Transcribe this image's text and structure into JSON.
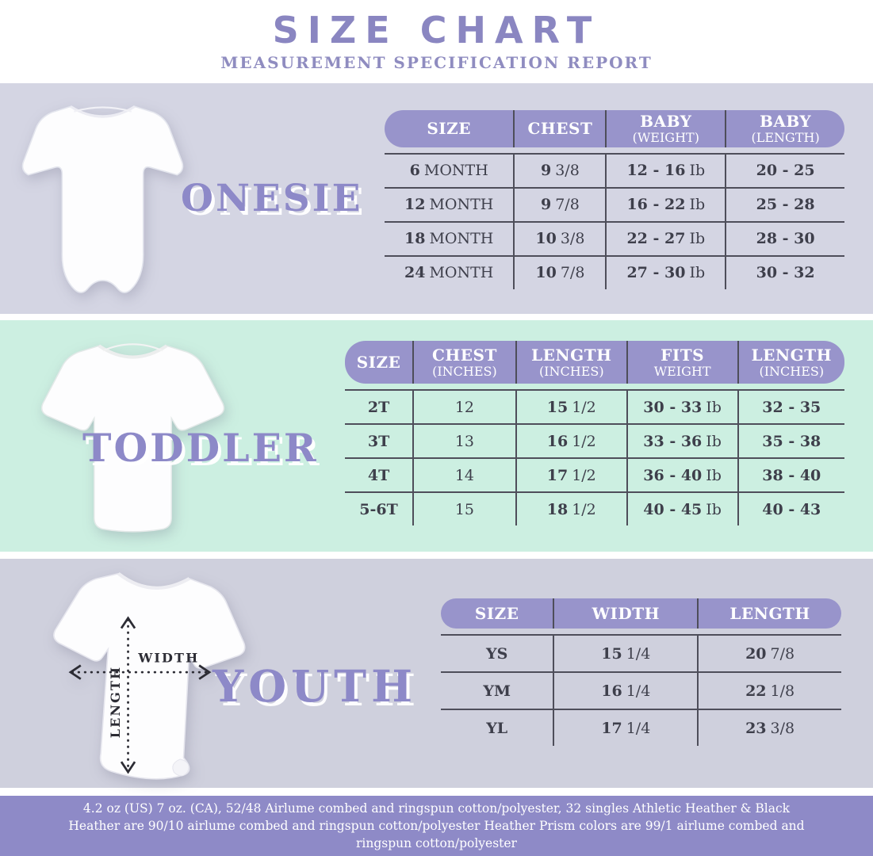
{
  "header": {
    "title": "SIZE CHART",
    "subtitle": "MEASUREMENT SPECIFICATION REPORT"
  },
  "colors": {
    "accent_purple": "#8d89c8",
    "header_pill": "#9894cb",
    "onesie_section_bg": "#d4d5e3",
    "toddler_section_bg": "#ccefe1",
    "youth_section_bg": "#cfd0dd",
    "footer_bg": "#8e8ac7",
    "table_line": "#4e4e5a",
    "table_text": "#3e3f4b"
  },
  "onesie": {
    "label": "ONESIE",
    "table": {
      "columns": [
        [
          "SIZE"
        ],
        [
          "CHEST"
        ],
        [
          "BABY",
          "(WEIGHT)"
        ],
        [
          "BABY",
          "(LENGTH)"
        ]
      ],
      "rows": [
        [
          {
            "b": "6",
            "r": "MONTH"
          },
          {
            "b": "9",
            "r": "3/8"
          },
          {
            "b": "12 - 16",
            "r": "Ib"
          },
          {
            "b": "20 - 25"
          }
        ],
        [
          {
            "b": "12",
            "r": "MONTH"
          },
          {
            "b": "9",
            "r": "7/8"
          },
          {
            "b": "16 - 22",
            "r": "Ib"
          },
          {
            "b": "25 - 28"
          }
        ],
        [
          {
            "b": "18",
            "r": "MONTH"
          },
          {
            "b": "10",
            "r": "3/8"
          },
          {
            "b": "22 - 27",
            "r": "Ib"
          },
          {
            "b": "28 - 30"
          }
        ],
        [
          {
            "b": "24",
            "r": "MONTH"
          },
          {
            "b": "10",
            "r": "7/8"
          },
          {
            "b": "27 - 30",
            "r": "Ib"
          },
          {
            "b": "30 - 32"
          }
        ]
      ]
    }
  },
  "toddler": {
    "label": "TODDLER",
    "table": {
      "columns": [
        [
          "SIZE"
        ],
        [
          "CHEST",
          "(INCHES)"
        ],
        [
          "LENGTH",
          "(INCHES)"
        ],
        [
          "FITS",
          "WEIGHT"
        ],
        [
          "LENGTH",
          "(INCHES)"
        ]
      ],
      "rows": [
        [
          {
            "b": "2T"
          },
          {
            "r": "12"
          },
          {
            "b": "15",
            "r": "1/2"
          },
          {
            "b": "30 - 33",
            "r": "Ib"
          },
          {
            "b": "32 - 35"
          }
        ],
        [
          {
            "b": "3T"
          },
          {
            "r": "13"
          },
          {
            "b": "16",
            "r": "1/2"
          },
          {
            "b": "33 - 36",
            "r": "Ib"
          },
          {
            "b": "35 - 38"
          }
        ],
        [
          {
            "b": "4T"
          },
          {
            "r": "14"
          },
          {
            "b": "17",
            "r": "1/2"
          },
          {
            "b": "36 - 40",
            "r": "Ib"
          },
          {
            "b": "38 - 40"
          }
        ],
        [
          {
            "b": "5-6T"
          },
          {
            "r": "15"
          },
          {
            "b": "18",
            "r": "1/2"
          },
          {
            "b": "40 - 45",
            "r": "Ib"
          },
          {
            "b": "40 - 43"
          }
        ]
      ]
    }
  },
  "youth": {
    "label": "YOUTH",
    "diagram": {
      "width_label": "WIDTH",
      "length_label": "LENGTH"
    },
    "table": {
      "columns": [
        [
          "SIZE"
        ],
        [
          "WIDTH"
        ],
        [
          "LENGTH"
        ]
      ],
      "rows": [
        [
          {
            "b": "YS"
          },
          {
            "b": "15",
            "r": "1/4"
          },
          {
            "b": "20",
            "r": "7/8"
          }
        ],
        [
          {
            "b": "YM"
          },
          {
            "b": "16",
            "r": "1/4"
          },
          {
            "b": "22",
            "r": "1/8"
          }
        ],
        [
          {
            "b": "YL"
          },
          {
            "b": "17",
            "r": "1/4"
          },
          {
            "b": "23",
            "r": "3/8"
          }
        ]
      ]
    }
  },
  "footer": {
    "text": "4.2 oz (US) 7 oz. (CA), 52/48 Airlume combed and ringspun cotton/polyester, 32 singles Athletic Heather & Black Heather are 90/10 airlume combed and ringspun cotton/polyester Heather Prism colors are 99/1 airlume combed and ringspun cotton/polyester"
  }
}
